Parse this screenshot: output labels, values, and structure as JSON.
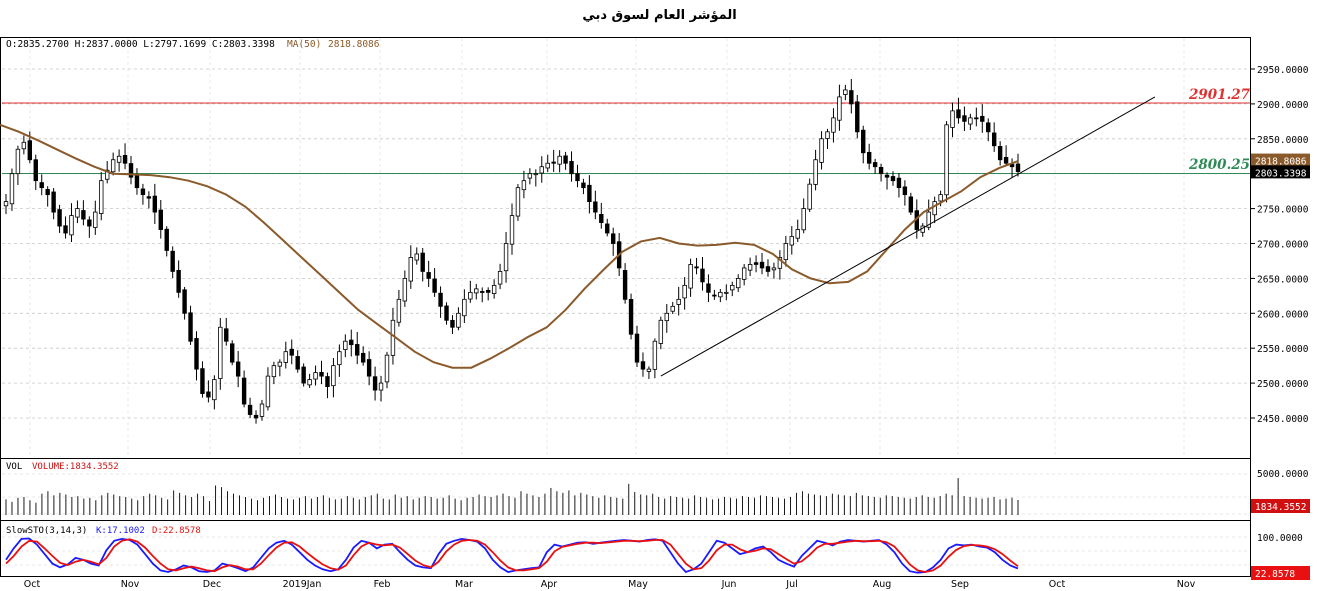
{
  "title": "المؤشر العام لسوق دبي",
  "ohlc_label": "O:2835.2700  H:2837.0000  L:2797.1699  C:2803.3398",
  "ma_label": "MA(50)",
  "ma_value": "2818.8086",
  "colors": {
    "ma": "#8b5a2b",
    "resistance": "#e03030",
    "support": "#2e8b57",
    "stoch_k": "#1a1aff",
    "stoch_d": "#e81010",
    "volume_badge": "#d01010",
    "close_badge": "#000000",
    "ma_badge": "#8b5a2b"
  },
  "chart_data": [
    {
      "type": "candlestick",
      "panel": "price",
      "ylim": [
        2410,
        2975
      ],
      "y_ticks": [
        2450,
        2500,
        2550,
        2600,
        2650,
        2700,
        2750,
        2800,
        2850,
        2900,
        2950
      ],
      "y_tick_labels": [
        "2450.0000",
        "2500.0000",
        "2550.0000",
        "2600.0000",
        "2650.0000",
        "2700.0000",
        "2750.0000",
        "2800.0000",
        "2850.0000",
        "2900.0000",
        "2950.0000"
      ],
      "x_tick_labels": [
        "Oct",
        "Nov",
        "Dec",
        "2019Jan",
        "Feb",
        "Mar",
        "Apr",
        "May",
        "Jun",
        "Jul",
        "Aug",
        "Sep",
        "Oct",
        "Nov"
      ],
      "close_path": [
        2760,
        2800,
        2835,
        2845,
        2820,
        2790,
        2780,
        2770,
        2745,
        2725,
        2715,
        2740,
        2750,
        2735,
        2725,
        2745,
        2790,
        2805,
        2820,
        2825,
        2815,
        2795,
        2780,
        2770,
        2765,
        2745,
        2720,
        2690,
        2660,
        2630,
        2600,
        2560,
        2520,
        2485,
        2480,
        2505,
        2580,
        2560,
        2530,
        2510,
        2470,
        2455,
        2450,
        2470,
        2510,
        2525,
        2530,
        2545,
        2540,
        2520,
        2500,
        2505,
        2515,
        2510,
        2495,
        2525,
        2545,
        2560,
        2555,
        2540,
        2530,
        2510,
        2490,
        2500,
        2540,
        2590,
        2620,
        2650,
        2680,
        2685,
        2660,
        2650,
        2630,
        2610,
        2590,
        2580,
        2600,
        2620,
        2630,
        2635,
        2630,
        2630,
        2640,
        2660,
        2700,
        2740,
        2780,
        2790,
        2800,
        2800,
        2810,
        2815,
        2815,
        2825,
        2815,
        2800,
        2790,
        2780,
        2760,
        2745,
        2730,
        2715,
        2700,
        2665,
        2620,
        2570,
        2530,
        2520,
        2520,
        2560,
        2590,
        2600,
        2610,
        2620,
        2640,
        2670,
        2665,
        2645,
        2630,
        2625,
        2630,
        2630,
        2640,
        2650,
        2665,
        2670,
        2670,
        2665,
        2660,
        2665,
        2680,
        2700,
        2710,
        2720,
        2750,
        2785,
        2820,
        2850,
        2860,
        2880,
        2910,
        2920,
        2900,
        2860,
        2830,
        2815,
        2810,
        2800,
        2795,
        2790,
        2780,
        2770,
        2745,
        2720,
        2725,
        2745,
        2760,
        2770,
        2870,
        2890,
        2880,
        2875,
        2880,
        2880,
        2875,
        2860,
        2840,
        2820,
        2815,
        2810,
        2803
      ],
      "ma50": [
        2870,
        2860,
        2848,
        2835,
        2822,
        2810,
        2800,
        2799,
        2798,
        2795,
        2790,
        2782,
        2770,
        2753,
        2730,
        2705,
        2680,
        2655,
        2630,
        2605,
        2585,
        2565,
        2545,
        2530,
        2522,
        2522,
        2535,
        2550,
        2566,
        2580,
        2605,
        2635,
        2662,
        2688,
        2703,
        2708,
        2700,
        2697,
        2698,
        2701,
        2698,
        2685,
        2663,
        2650,
        2643,
        2645,
        2660,
        2690,
        2720,
        2745,
        2760,
        2775,
        2795,
        2808,
        2818
      ],
      "resistance": {
        "value": 2901.27,
        "label": "2901.27"
      },
      "support_level": {
        "value": 2800.25,
        "label": "2800.25"
      },
      "trendline": {
        "start": {
          "date_index": 110,
          "value": 2510
        },
        "end": {
          "date_index": 193,
          "value": 2910
        }
      },
      "last_close": "2803.3398",
      "last_ma": "2818.8086"
    },
    {
      "type": "bar",
      "panel": "volume",
      "label": "VOL",
      "series_label": "VOLUME:1834.3552",
      "y_tick_labels": [
        "5000.0000"
      ],
      "last_value": "1834.3552",
      "values": [
        1900,
        1600,
        2100,
        2200,
        1800,
        1500,
        2600,
        2900,
        2400,
        2700,
        2500,
        2200,
        2300,
        2000,
        2100,
        1800,
        2400,
        2700,
        2500,
        2300,
        2200,
        2000,
        1800,
        2300,
        2600,
        2400,
        2100,
        1900,
        3000,
        2700,
        2400,
        2200,
        2600,
        2300,
        1700,
        3600,
        3400,
        2900,
        2600,
        2400,
        2200,
        2000,
        1800,
        2100,
        2300,
        2500,
        2200,
        2000,
        1900,
        2100,
        2300,
        2000,
        2200,
        2400,
        2100,
        1900,
        2000,
        2300,
        2100,
        1900,
        2200,
        2400,
        2600,
        2000,
        1900,
        2500,
        2100,
        2300,
        1900,
        2100,
        2300,
        2200,
        2000,
        2100,
        2400,
        2000,
        1800,
        2100,
        2200,
        2500,
        2300,
        2200,
        2400,
        2600,
        2300,
        2100,
        2900,
        2600,
        2400,
        2200,
        2600,
        3300,
        2900,
        2700,
        3000,
        2400,
        2700,
        2500,
        2300,
        2100,
        2400,
        2200,
        2100,
        2000,
        3800,
        2800,
        2500,
        2400,
        2600,
        2200,
        2000,
        2300,
        2200,
        2100,
        2000,
        2400,
        2200,
        2100,
        1900,
        2000,
        2200,
        2100,
        2000,
        2300,
        2200,
        2100,
        2400,
        2300,
        2200,
        2100,
        2000,
        2200,
        2700,
        2900,
        2600,
        2500,
        2400,
        2300,
        2600,
        2500,
        2400,
        2300,
        2700,
        2400,
        2300,
        2200,
        2100,
        2400,
        2300,
        2200,
        2100,
        2000,
        2200,
        2400,
        2200,
        2100,
        2300,
        2600,
        2400,
        4500,
        2300,
        2200,
        2100,
        2000,
        2100,
        2200,
        1900,
        2000,
        2100,
        1834
      ]
    },
    {
      "type": "line",
      "panel": "stochastic",
      "label": "SlowSTO(3,14,3)",
      "k_label": "K:17.1002",
      "d_label": "D:22.8578",
      "y_tick_labels": [
        "100.0000"
      ],
      "ylim": [
        0,
        110
      ],
      "last_value": "22.8578",
      "series": [
        {
          "name": "K",
          "values": [
            40,
            70,
            95,
            96,
            80,
            55,
            30,
            20,
            28,
            45,
            40,
            30,
            25,
            65,
            90,
            95,
            92,
            80,
            55,
            30,
            12,
            8,
            15,
            25,
            20,
            10,
            8,
            12,
            30,
            25,
            18,
            10,
            20,
            45,
            70,
            85,
            90,
            80,
            60,
            40,
            25,
            15,
            10,
            15,
            40,
            72,
            90,
            85,
            70,
            80,
            82,
            60,
            40,
            25,
            20,
            18,
            55,
            82,
            90,
            95,
            92,
            88,
            70,
            40,
            20,
            8,
            12,
            15,
            18,
            20,
            60,
            80,
            75,
            80,
            85,
            86,
            82,
            85,
            88,
            90,
            92,
            90,
            88,
            92,
            94,
            90,
            60,
            30,
            8,
            15,
            30,
            60,
            90,
            85,
            70,
            55,
            60,
            70,
            75,
            60,
            40,
            30,
            22,
            50,
            70,
            90,
            85,
            78,
            88,
            92,
            90,
            88,
            90,
            92,
            80,
            60,
            30,
            10,
            6,
            8,
            20,
            40,
            70,
            80,
            78,
            80,
            75,
            72,
            60,
            40,
            25,
            17
          ]
        },
        {
          "name": "D",
          "values": [
            30,
            50,
            75,
            90,
            88,
            70,
            50,
            32,
            26,
            35,
            40,
            35,
            28,
            45,
            75,
            90,
            94,
            88,
            72,
            50,
            30,
            15,
            12,
            18,
            22,
            18,
            12,
            10,
            20,
            26,
            22,
            15,
            15,
            30,
            52,
            72,
            85,
            86,
            75,
            58,
            42,
            28,
            18,
            14,
            25,
            52,
            75,
            85,
            80,
            78,
            80,
            72,
            55,
            38,
            26,
            20,
            35,
            62,
            80,
            90,
            92,
            90,
            80,
            60,
            38,
            20,
            12,
            12,
            15,
            18,
            35,
            62,
            74,
            78,
            82,
            85,
            85,
            84,
            86,
            88,
            90,
            90,
            89,
            90,
            92,
            92,
            80,
            55,
            30,
            15,
            18,
            38,
            65,
            80,
            80,
            68,
            60,
            64,
            70,
            68,
            55,
            42,
            30,
            36,
            52,
            72,
            82,
            82,
            85,
            88,
            90,
            89,
            89,
            90,
            86,
            75,
            52,
            28,
            12,
            8,
            12,
            25,
            48,
            66,
            76,
            79,
            78,
            75,
            68,
            55,
            38,
            22.8578
          ]
        }
      ]
    }
  ]
}
